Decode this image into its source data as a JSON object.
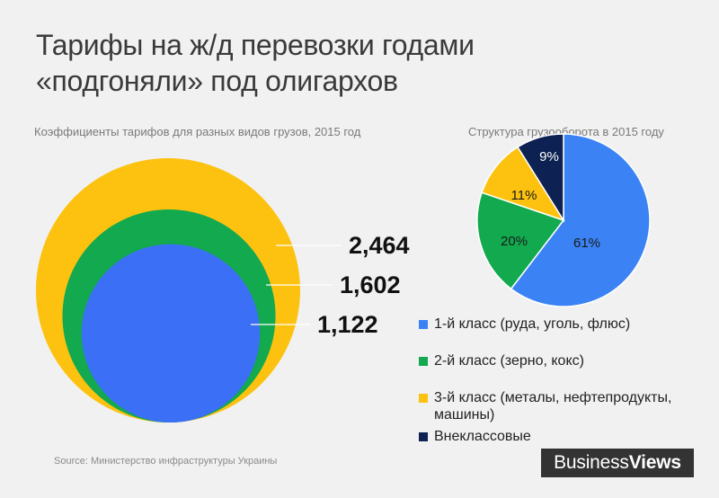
{
  "header": {
    "title_line1": "Тарифы на ж/д перевозки годами",
    "title_line2": "«подгоняли» под олигархов"
  },
  "chart_data": [
    {
      "type": "bubble",
      "subtitle": "Коэффициенты тарифов для разных видов грузов, 2015 год",
      "categories": [
        "3-й класс (металы, нефтепродукты, машины)",
        "2-й класс (зерно, кокс)",
        "1-й класс (руда, уголь, флюс)"
      ],
      "values": [
        2.464,
        1.602,
        1.122
      ],
      "labels": [
        "2,464",
        "1,602",
        "1,122"
      ],
      "colors": [
        "#fcc20f",
        "#12a94f",
        "#3b6ff5"
      ]
    },
    {
      "type": "pie",
      "subtitle": "Структура грузооборота в 2015 году",
      "categories": [
        "1-й класс (руда, уголь, флюс)",
        "2-й класс (зерно, кокс)",
        "3-й класс (металы, нефтепродукты, машины)",
        "Внеклассовые"
      ],
      "values": [
        61,
        20,
        11,
        9
      ],
      "labels": [
        "61%",
        "20%",
        "11%",
        "9%"
      ],
      "colors": [
        "#3b83f4",
        "#12a94f",
        "#fcc20f",
        "#0d2153"
      ],
      "legend_position": "bottom"
    }
  ],
  "legend": {
    "items": [
      {
        "label": "1-й класс (руда, уголь, флюс)",
        "color": "#3b83f4"
      },
      {
        "label": "2-й класс (зерно, кокс)",
        "color": "#12a94f"
      },
      {
        "label": "3-й класс (металы, нефтепродукты, машины)",
        "color": "#fcc20f"
      },
      {
        "label": "Внеклассовые",
        "color": "#0d2153"
      }
    ]
  },
  "footer": {
    "source": "Source: Министерство инфраструктуры Украины",
    "logo_part1": "Business",
    "logo_part2": "Views"
  }
}
